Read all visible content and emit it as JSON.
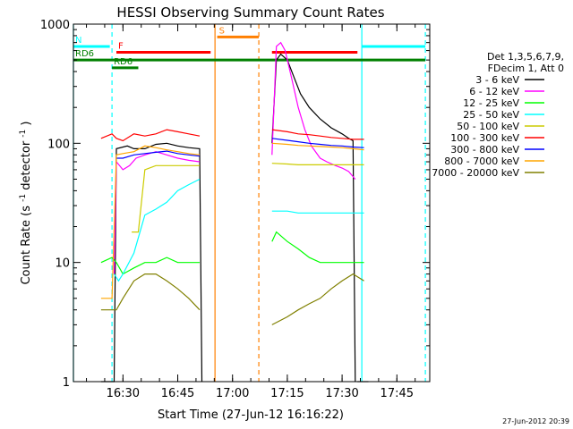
{
  "chart_data": {
    "type": "line",
    "title": "HESSI Observing Summary Count Rates",
    "xlabel": "Start Time (27-Jun-12 16:16:22)",
    "ylabel_main": "Count Rate (s",
    "ylabel_sup1": "-1",
    "ylabel_mid": " detector",
    "ylabel_sup2": "-1",
    "ylabel_end": ")",
    "ylog": true,
    "xlim": [
      16.2739,
      17.9
    ],
    "ylim": [
      1,
      1000
    ],
    "yticks": [
      {
        "value": 1,
        "label": "1"
      },
      {
        "value": 10,
        "label": "10"
      },
      {
        "value": 100,
        "label": "100"
      },
      {
        "value": 1000,
        "label": "1000"
      }
    ],
    "xticks": [
      {
        "value": 16.5,
        "label": "16:30"
      },
      {
        "value": 16.75,
        "label": "16:45"
      },
      {
        "value": 17.0,
        "label": "17:00"
      },
      {
        "value": 17.25,
        "label": "17:15"
      },
      {
        "value": 17.5,
        "label": "17:30"
      },
      {
        "value": 17.75,
        "label": "17:45"
      }
    ],
    "timestamp": "27-Jun-2012 20:39",
    "legend_header": [
      "Det 1,3,5,6,7,9,",
      "FDecim 1, Att 0"
    ],
    "series": [
      {
        "name": "3 - 6 keV",
        "color": "#000000",
        "segments": [
          [
            [
              16.4,
              1
            ],
            [
              16.44,
              1
            ],
            [
              16.45,
              1
            ],
            [
              16.46,
              1
            ],
            [
              16.47,
              90
            ],
            [
              16.52,
              95
            ],
            [
              16.55,
              90
            ],
            [
              16.6,
              90
            ],
            [
              16.65,
              98
            ],
            [
              16.7,
              100
            ],
            [
              16.75,
              95
            ],
            [
              16.8,
              92
            ],
            [
              16.85,
              90
            ],
            [
              16.86,
              1
            ]
          ],
          [
            [
              17.18,
              100
            ],
            [
              17.2,
              500
            ],
            [
              17.22,
              560
            ],
            [
              17.25,
              500
            ],
            [
              17.28,
              360
            ],
            [
              17.31,
              260
            ],
            [
              17.35,
              200
            ],
            [
              17.4,
              160
            ],
            [
              17.45,
              135
            ],
            [
              17.5,
              120
            ],
            [
              17.53,
              110
            ],
            [
              17.55,
              105
            ],
            [
              17.56,
              1
            ]
          ],
          [
            [
              17.57,
              1
            ],
            [
              17.6,
              1
            ],
            [
              17.62,
              1
            ]
          ]
        ]
      },
      {
        "name": "6 - 12 keV",
        "color": "#ff00ff",
        "segments": [
          [
            [
              16.46,
              8
            ],
            [
              16.47,
              70
            ],
            [
              16.5,
              60
            ],
            [
              16.53,
              65
            ],
            [
              16.56,
              75
            ],
            [
              16.6,
              80
            ],
            [
              16.65,
              85
            ],
            [
              16.7,
              80
            ],
            [
              16.75,
              75
            ],
            [
              16.8,
              72
            ],
            [
              16.85,
              70
            ]
          ],
          [
            [
              17.18,
              80
            ],
            [
              17.2,
              650
            ],
            [
              17.22,
              700
            ],
            [
              17.24,
              600
            ],
            [
              17.27,
              350
            ],
            [
              17.3,
              200
            ],
            [
              17.33,
              130
            ],
            [
              17.36,
              95
            ],
            [
              17.4,
              75
            ],
            [
              17.43,
              70
            ],
            [
              17.47,
              65
            ],
            [
              17.5,
              62
            ],
            [
              17.53,
              58
            ],
            [
              17.56,
              50
            ]
          ]
        ]
      },
      {
        "name": "12 - 25 keV",
        "color": "#00ff00",
        "segments": [
          [
            [
              16.4,
              10
            ],
            [
              16.45,
              11
            ],
            [
              16.47,
              10
            ],
            [
              16.5,
              8
            ],
            [
              16.55,
              9
            ],
            [
              16.6,
              10
            ],
            [
              16.65,
              10
            ],
            [
              16.7,
              11
            ],
            [
              16.75,
              10
            ],
            [
              16.8,
              10
            ],
            [
              16.85,
              10
            ]
          ],
          [
            [
              17.18,
              15
            ],
            [
              17.2,
              18
            ],
            [
              17.25,
              15
            ],
            [
              17.3,
              13
            ],
            [
              17.35,
              11
            ],
            [
              17.4,
              10
            ],
            [
              17.45,
              10
            ],
            [
              17.5,
              10
            ],
            [
              17.55,
              10
            ],
            [
              17.6,
              10
            ]
          ]
        ]
      },
      {
        "name": "25 - 50 keV",
        "color": "#00ffff",
        "segments": [
          [
            [
              16.46,
              8
            ],
            [
              16.48,
              7
            ],
            [
              16.5,
              8
            ],
            [
              16.55,
              12
            ],
            [
              16.6,
              25
            ],
            [
              16.65,
              28
            ],
            [
              16.7,
              32
            ],
            [
              16.75,
              40
            ],
            [
              16.8,
              45
            ],
            [
              16.85,
              50
            ]
          ],
          [
            [
              17.18,
              27
            ],
            [
              17.25,
              27
            ],
            [
              17.3,
              26
            ],
            [
              17.35,
              26
            ],
            [
              17.4,
              26
            ],
            [
              17.45,
              26
            ],
            [
              17.5,
              26
            ],
            [
              17.55,
              26
            ],
            [
              17.6,
              26
            ]
          ]
        ]
      },
      {
        "name": "50 - 100 keV",
        "color": "#cccc00",
        "segments": [
          [
            [
              16.54,
              18
            ],
            [
              16.57,
              18
            ],
            [
              16.6,
              60
            ],
            [
              16.65,
              65
            ],
            [
              16.7,
              65
            ],
            [
              16.75,
              65
            ],
            [
              16.8,
              65
            ],
            [
              16.85,
              65
            ]
          ],
          [
            [
              17.18,
              68
            ],
            [
              17.25,
              67
            ],
            [
              17.3,
              66
            ],
            [
              17.35,
              66
            ],
            [
              17.4,
              66
            ],
            [
              17.45,
              66
            ],
            [
              17.5,
              66
            ],
            [
              17.55,
              66
            ],
            [
              17.6,
              66
            ]
          ]
        ]
      },
      {
        "name": "100 - 300 keV",
        "color": "#ff0000",
        "segments": [
          [
            [
              16.4,
              110
            ],
            [
              16.45,
              120
            ],
            [
              16.47,
              110
            ],
            [
              16.5,
              105
            ],
            [
              16.55,
              120
            ],
            [
              16.6,
              115
            ],
            [
              16.65,
              120
            ],
            [
              16.7,
              130
            ],
            [
              16.75,
              125
            ],
            [
              16.8,
              120
            ],
            [
              16.85,
              115
            ]
          ],
          [
            [
              17.18,
              130
            ],
            [
              17.25,
              125
            ],
            [
              17.3,
              120
            ],
            [
              17.35,
              118
            ],
            [
              17.4,
              115
            ],
            [
              17.45,
              112
            ],
            [
              17.5,
              110
            ],
            [
              17.55,
              108
            ],
            [
              17.6,
              108
            ]
          ]
        ]
      },
      {
        "name": "300 - 800 keV",
        "color": "#0000ff",
        "segments": [
          [
            [
              16.47,
              75
            ],
            [
              16.5,
              75
            ],
            [
              16.55,
              80
            ],
            [
              16.6,
              82
            ],
            [
              16.65,
              84
            ],
            [
              16.7,
              86
            ],
            [
              16.75,
              82
            ],
            [
              16.8,
              80
            ],
            [
              16.85,
              78
            ]
          ],
          [
            [
              17.18,
              110
            ],
            [
              17.25,
              106
            ],
            [
              17.3,
              103
            ],
            [
              17.35,
              100
            ],
            [
              17.4,
              98
            ],
            [
              17.45,
              96
            ],
            [
              17.5,
              95
            ],
            [
              17.55,
              93
            ],
            [
              17.6,
              92
            ]
          ]
        ]
      },
      {
        "name": "800 - 7000 keV",
        "color": "#ffa500",
        "segments": [
          [
            [
              16.4,
              5
            ],
            [
              16.45,
              5
            ],
            [
              16.47,
              80
            ],
            [
              16.5,
              82
            ],
            [
              16.55,
              85
            ],
            [
              16.6,
              95
            ],
            [
              16.65,
              92
            ],
            [
              16.7,
              88
            ],
            [
              16.75,
              85
            ],
            [
              16.8,
              82
            ],
            [
              16.85,
              80
            ]
          ],
          [
            [
              17.18,
              100
            ],
            [
              17.25,
              98
            ],
            [
              17.3,
              96
            ],
            [
              17.35,
              95
            ],
            [
              17.4,
              94
            ],
            [
              17.45,
              93
            ],
            [
              17.5,
              92
            ],
            [
              17.55,
              90
            ],
            [
              17.6,
              88
            ]
          ]
        ]
      },
      {
        "name": "7000 - 20000 keV",
        "color": "#808000",
        "segments": [
          [
            [
              16.4,
              4
            ],
            [
              16.45,
              4
            ],
            [
              16.47,
              4
            ],
            [
              16.5,
              5
            ],
            [
              16.55,
              7
            ],
            [
              16.6,
              8
            ],
            [
              16.65,
              8
            ],
            [
              16.7,
              7
            ],
            [
              16.75,
              6
            ],
            [
              16.8,
              5
            ],
            [
              16.85,
              4
            ]
          ],
          [
            [
              17.18,
              3
            ],
            [
              17.25,
              3.5
            ],
            [
              17.3,
              4
            ],
            [
              17.35,
              4.5
            ],
            [
              17.4,
              5
            ],
            [
              17.45,
              6
            ],
            [
              17.5,
              7
            ],
            [
              17.55,
              8
            ],
            [
              17.6,
              7
            ]
          ]
        ]
      }
    ],
    "flags": [
      {
        "label": "N",
        "color": "#00ffff",
        "y": 650,
        "segments": [
          [
            16.2739,
            16.44
          ],
          [
            17.59,
            17.88
          ]
        ]
      },
      {
        "label": "F",
        "color": "#ff0000",
        "y": 580,
        "segments": [
          [
            16.47,
            16.9
          ],
          [
            17.18,
            17.57
          ]
        ]
      },
      {
        "label": "RD6",
        "color": "#008000",
        "y": 500,
        "segments": [
          [
            16.2739,
            17.88
          ]
        ]
      },
      {
        "label": "RD6",
        "color": "#008000",
        "y": 430,
        "segments": [
          [
            16.45,
            16.57
          ]
        ]
      },
      {
        "label": "S",
        "color": "#ff7f00",
        "y": 780,
        "segments": [
          [
            16.93,
            17.12
          ]
        ]
      }
    ],
    "vlines": [
      {
        "x": 16.2739,
        "color": "#00ffff",
        "dash": false
      },
      {
        "x": 16.45,
        "color": "#00ffff",
        "dash": true
      },
      {
        "x": 16.92,
        "color": "#ff7f00",
        "dash": false
      },
      {
        "x": 17.12,
        "color": "#ff7f00",
        "dash": true
      },
      {
        "x": 17.59,
        "color": "#00ffff",
        "dash": false
      },
      {
        "x": 17.88,
        "color": "#00ffff",
        "dash": true
      }
    ]
  }
}
